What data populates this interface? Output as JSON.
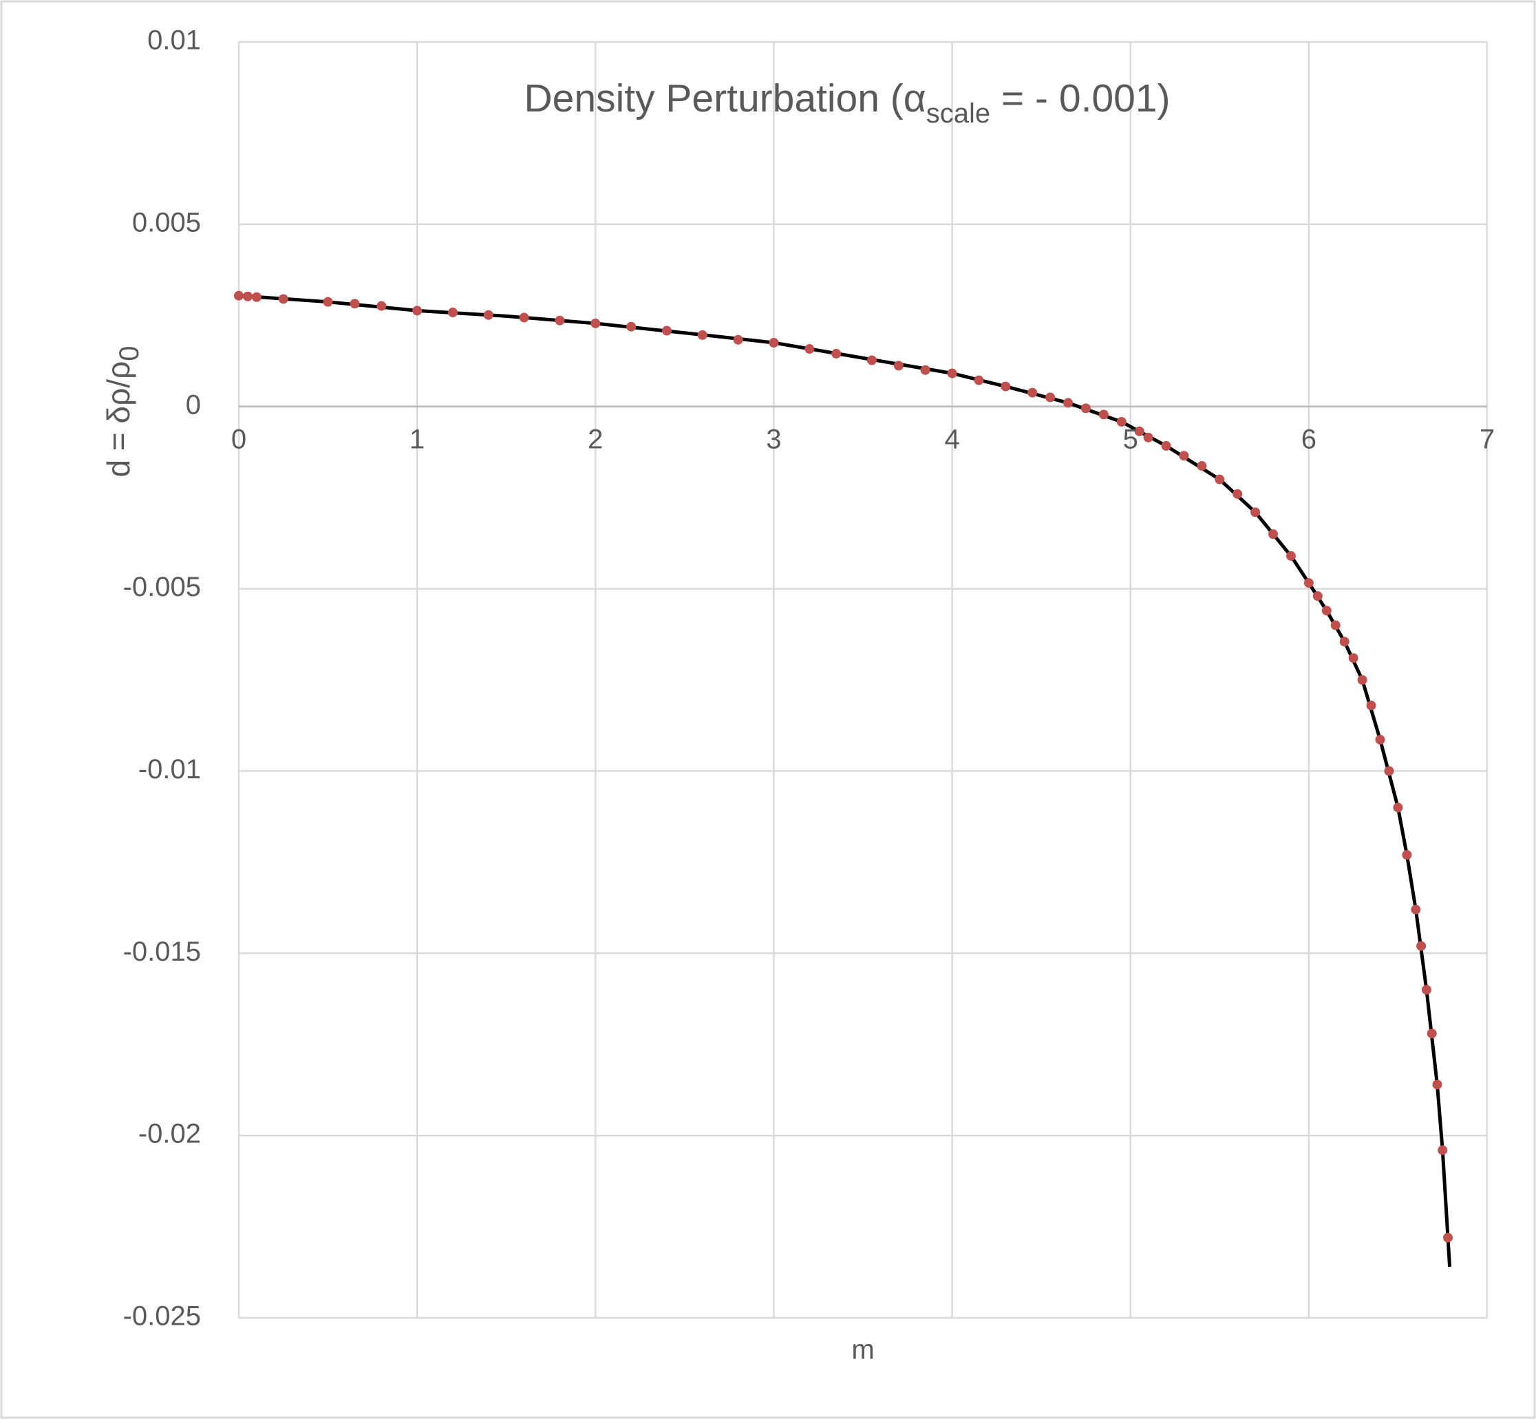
{
  "chart_data": {
    "type": "scatter",
    "title": "Density Perturbation (α",
    "title_subscript": "scale",
    "title_end": " = - 0.001)",
    "x_label": "m",
    "y_label": "d = δρ/ρ",
    "y_label_subscript": "0",
    "xlim": [
      0,
      7
    ],
    "xticks": [
      0,
      1,
      2,
      3,
      4,
      5,
      6,
      7
    ],
    "ylim": [
      -0.025,
      0.01
    ],
    "yticks": [
      0.01,
      0.005,
      0,
      -0.005,
      -0.01,
      -0.015,
      -0.02,
      -0.025
    ],
    "grid": true,
    "series": [
      {
        "style": "line",
        "color": "#000000",
        "x": [
          0,
          0.5,
          1.0,
          1.5,
          2.0,
          2.5,
          3.0,
          3.5,
          4.0,
          4.3,
          4.65,
          4.95,
          5.2,
          5.5,
          5.7,
          5.9,
          6.0,
          6.1,
          6.2,
          6.3,
          6.4,
          6.5,
          6.55,
          6.6,
          6.66,
          6.72,
          6.75,
          6.78,
          6.79
        ],
        "values": [
          0.00304,
          0.00287,
          0.00263,
          0.00248,
          0.00228,
          0.00202,
          0.00175,
          0.00133,
          0.00091,
          0.00055,
          0.0001,
          -0.00042,
          -0.00108,
          -0.002,
          -0.0029,
          -0.0041,
          -0.00484,
          -0.0056,
          -0.00645,
          -0.0075,
          -0.00914,
          -0.011,
          -0.0123,
          -0.0138,
          -0.016,
          -0.0186,
          -0.0204,
          -0.0228,
          -0.0236
        ]
      },
      {
        "style": "marker",
        "color": "#c0504d",
        "x": [
          0,
          0.05,
          0.1,
          0.25,
          0.5,
          0.65,
          0.8,
          1.0,
          1.2,
          1.4,
          1.6,
          1.8,
          2.0,
          2.2,
          2.4,
          2.6,
          2.8,
          3.0,
          3.2,
          3.35,
          3.55,
          3.7,
          3.85,
          4.0,
          4.15,
          4.3,
          4.45,
          4.55,
          4.65,
          4.75,
          4.85,
          4.95,
          5.05,
          5.1,
          5.2,
          5.3,
          5.4,
          5.5,
          5.6,
          5.7,
          5.8,
          5.9,
          6.0,
          6.05,
          6.1,
          6.15,
          6.2,
          6.25,
          6.3,
          6.35,
          6.4,
          6.45,
          6.5,
          6.55,
          6.6,
          6.63,
          6.66,
          6.69,
          6.72,
          6.75,
          6.78
        ],
        "values": [
          0.00304,
          0.00302,
          0.003,
          0.00295,
          0.00287,
          0.00282,
          0.00276,
          0.00263,
          0.00258,
          0.00251,
          0.00244,
          0.00236,
          0.00228,
          0.00219,
          0.00208,
          0.00196,
          0.00183,
          0.00175,
          0.00158,
          0.00145,
          0.00127,
          0.00112,
          0.001,
          0.00091,
          0.00072,
          0.00055,
          0.00038,
          0.00025,
          0.0001,
          -5e-05,
          -0.00022,
          -0.00042,
          -0.00068,
          -0.00085,
          -0.00108,
          -0.00135,
          -0.00163,
          -0.002,
          -0.0024,
          -0.0029,
          -0.0035,
          -0.0041,
          -0.00484,
          -0.0052,
          -0.0056,
          -0.006,
          -0.00645,
          -0.0069,
          -0.0075,
          -0.0082,
          -0.00914,
          -0.01,
          -0.011,
          -0.0123,
          -0.0138,
          -0.0148,
          -0.016,
          -0.0172,
          -0.0186,
          -0.0204,
          -0.0228
        ]
      }
    ]
  }
}
